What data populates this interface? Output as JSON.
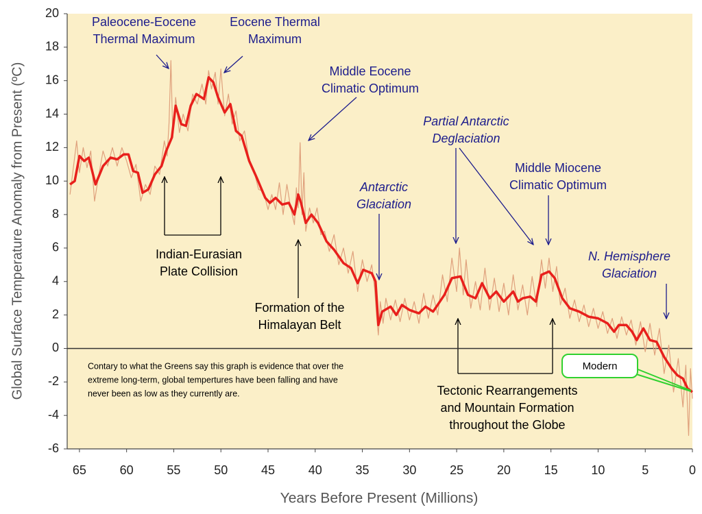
{
  "chart_data": {
    "type": "line",
    "x_label": "Years Before Present (Millions)",
    "y_label": "Global Surface Temperature Anomaly from Present (ºC)",
    "xlim": [
      66.3,
      0
    ],
    "ylim": [
      -6,
      20
    ],
    "xticks": [
      65,
      60,
      55,
      50,
      45,
      40,
      35,
      30,
      25,
      20,
      15,
      10,
      5,
      0
    ],
    "yticks": [
      -6,
      -4,
      -2,
      0,
      2,
      4,
      6,
      8,
      10,
      12,
      14,
      16,
      18,
      20
    ],
    "zero_line": true,
    "series": [
      {
        "color": "#dfa07c",
        "width": 1.2,
        "x": [
          66,
          65.6,
          65.3,
          65,
          64.6,
          64.2,
          63.8,
          63.4,
          63,
          62.5,
          62,
          61.5,
          61,
          60.5,
          60,
          59.5,
          59,
          58.5,
          58,
          57.5,
          57,
          56.5,
          56,
          55.7,
          55.5,
          55.3,
          55.1,
          54.8,
          54.4,
          54,
          53.5,
          53,
          52.5,
          52,
          51.6,
          51.3,
          51,
          50.6,
          50.3,
          50,
          49.6,
          49.2,
          48.8,
          48.4,
          48,
          47.5,
          47,
          46.5,
          46,
          45.5,
          45,
          44.6,
          44.2,
          43.8,
          43.4,
          43,
          42.6,
          42.2,
          42,
          41.8,
          41.6,
          41.4,
          41.2,
          41,
          40.6,
          40.2,
          39.8,
          39.4,
          39,
          38.5,
          38,
          37.5,
          37,
          36.5,
          36,
          35.5,
          35,
          34.5,
          34,
          33.7,
          33.5,
          33.3,
          33.1,
          32.8,
          32.5,
          32,
          31.5,
          31,
          30.5,
          30,
          29.5,
          29,
          28.5,
          28,
          27.5,
          27,
          26.5,
          26,
          25.5,
          25,
          24.7,
          24.3,
          24,
          23.5,
          23,
          22.5,
          22,
          21.5,
          21,
          20.5,
          20,
          19.5,
          19,
          18.5,
          18,
          17.5,
          17,
          16.5,
          16,
          15.6,
          15.2,
          14.8,
          14.4,
          14,
          13.5,
          13,
          12.5,
          12,
          11.5,
          11,
          10.5,
          10,
          9.5,
          9,
          8.5,
          8,
          7.5,
          7,
          6.5,
          6,
          5.5,
          5,
          4.5,
          4,
          3.5,
          3,
          2.5,
          2,
          1.5,
          1,
          0.7,
          0.4,
          0.2,
          0
        ],
        "values": [
          9.2,
          11.0,
          12.4,
          10.5,
          12.0,
          10.8,
          11.8,
          8.8,
          10.2,
          11.8,
          10.9,
          12.0,
          10.9,
          12.0,
          11.2,
          10.2,
          11.0,
          8.8,
          9.8,
          9.2,
          10.9,
          10.4,
          12.4,
          11.5,
          13.5,
          17.2,
          12.6,
          15.0,
          12.9,
          14.0,
          13.0,
          15.2,
          14.6,
          15.8,
          14.6,
          16.6,
          15.5,
          16.5,
          14.6,
          16.7,
          13.9,
          15.2,
          13.4,
          14.2,
          12.4,
          13.0,
          11.2,
          10.6,
          9.5,
          9.4,
          8.3,
          9.2,
          8.3,
          9.9,
          8.0,
          9.8,
          8.4,
          7.4,
          9.6,
          8.4,
          12.3,
          8.0,
          10.5,
          7.0,
          8.4,
          7.5,
          8.4,
          6.8,
          7.0,
          5.8,
          6.8,
          5.0,
          6.0,
          4.5,
          5.8,
          3.4,
          5.3,
          4.0,
          5.0,
          3.6,
          2.0,
          0.8,
          2.8,
          1.5,
          3.0,
          1.7,
          2.9,
          1.6,
          3.0,
          1.7,
          2.8,
          1.5,
          3.3,
          1.8,
          3.2,
          2.0,
          4.4,
          2.8,
          5.4,
          3.4,
          6.0,
          3.2,
          5.3,
          2.4,
          4.0,
          2.3,
          4.8,
          2.3,
          4.2,
          2.2,
          3.9,
          2.0,
          4.4,
          2.3,
          3.8,
          2.0,
          4.3,
          2.5,
          5.3,
          3.6,
          5.4,
          3.4,
          4.9,
          2.6,
          3.6,
          1.8,
          2.9,
          1.6,
          2.6,
          1.3,
          2.4,
          1.2,
          2.2,
          0.9,
          1.8,
          0.6,
          1.9,
          0.8,
          1.7,
          0.2,
          1.6,
          -0.2,
          1.5,
          -0.4,
          1.2,
          -1.5,
          0.2,
          -2.6,
          -0.6,
          -3.5,
          -1.0,
          -5.2,
          -1.2,
          -3.0
        ]
      },
      {
        "color": "#e8201c",
        "width": 3.5,
        "x": [
          66,
          65.5,
          65,
          64.5,
          64,
          63.3,
          62.5,
          61.7,
          61,
          60.3,
          59.8,
          59.3,
          58.8,
          58.3,
          57.7,
          57,
          56.3,
          55.8,
          55.2,
          54.8,
          54.2,
          53.7,
          53.2,
          52.6,
          51.8,
          51.3,
          50.8,
          50.3,
          49.6,
          49,
          48.4,
          47.8,
          47,
          46.2,
          45.3,
          44.8,
          44.2,
          43.5,
          42.8,
          42.2,
          41.8,
          41.5,
          41,
          40.4,
          39.7,
          38.8,
          38,
          37,
          36.2,
          35.5,
          34.9,
          34,
          33.6,
          33.3,
          32.9,
          32,
          31.4,
          30.8,
          30,
          29,
          28.3,
          27.5,
          26.3,
          25.5,
          24.6,
          23.8,
          23,
          22.3,
          21.5,
          20.8,
          20,
          19,
          18.5,
          18,
          17.2,
          16.6,
          16,
          15.2,
          14.6,
          13.8,
          13,
          12,
          11,
          10,
          9,
          8.3,
          7.8,
          7,
          6.4,
          5.9,
          5.2,
          4.5,
          3.8,
          3,
          2.2,
          1.6,
          1,
          0.5,
          0
        ],
        "values": [
          9.8,
          10.0,
          11.5,
          11.2,
          11.4,
          9.8,
          10.9,
          11.4,
          11.3,
          11.6,
          11.6,
          10.6,
          10.5,
          9.3,
          9.5,
          10.4,
          10.9,
          11.8,
          12.6,
          14.5,
          13.4,
          13.3,
          14.5,
          15.2,
          14.9,
          16.2,
          15.9,
          15.0,
          14.1,
          14.6,
          13.0,
          12.7,
          11.2,
          10.2,
          9.0,
          8.7,
          9.0,
          8.6,
          8.7,
          8.0,
          9.2,
          8.7,
          7.5,
          8.0,
          7.5,
          6.4,
          5.9,
          5.1,
          4.8,
          3.9,
          4.7,
          4.5,
          4.0,
          1.4,
          2.2,
          2.5,
          2.0,
          2.6,
          2.3,
          2.1,
          2.5,
          2.2,
          3.2,
          4.2,
          4.3,
          3.2,
          3.0,
          3.9,
          3.0,
          3.4,
          2.8,
          3.4,
          2.8,
          3.0,
          3.1,
          2.8,
          4.4,
          4.6,
          4.2,
          3.0,
          2.4,
          2.2,
          1.9,
          1.8,
          1.5,
          1.0,
          1.4,
          1.4,
          1.0,
          0.5,
          1.2,
          0.5,
          0.4,
          -0.5,
          -1.2,
          -1.6,
          -1.8,
          -2.4,
          -2.6
        ]
      }
    ],
    "annotations": [
      {
        "lines": [
          "Paleocene-Eocene",
          "Thermal Maximum"
        ],
        "color": "#1c1c8c",
        "italic": false
      },
      {
        "lines": [
          "Eocene Thermal",
          "Maximum"
        ],
        "color": "#1c1c8c",
        "italic": false
      },
      {
        "lines": [
          "Middle Eocene",
          "Climatic Optimum"
        ],
        "color": "#1c1c8c",
        "italic": false
      },
      {
        "lines": [
          "Partial Antarctic",
          "Deglaciation"
        ],
        "color": "#1c1c8c",
        "italic": true
      },
      {
        "lines": [
          "Middle Miocene",
          "Climatic Optimum"
        ],
        "color": "#1c1c8c",
        "italic": false
      },
      {
        "lines": [
          "Antarctic",
          "Glaciation"
        ],
        "color": "#1c1c8c",
        "italic": true
      },
      {
        "lines": [
          "N. Hemisphere",
          "Glaciation"
        ],
        "color": "#1c1c8c",
        "italic": true
      },
      {
        "lines": [
          "Indian-Eurasian",
          "Plate Collision"
        ],
        "color": "#000000",
        "italic": false
      },
      {
        "lines": [
          "Formation of the",
          "Himalayan Belt"
        ],
        "color": "#000000",
        "italic": false
      },
      {
        "lines": [
          "Tectonic Rearrangements",
          "and Mountain Formation",
          "throughout the Globe"
        ],
        "color": "#000000",
        "italic": false
      }
    ],
    "note": [
      "Contary to what the Greens say this graph is evidence that over the",
      "extreme long-term, global tempertures have been falling and have",
      "never been as low as they currently are."
    ],
    "callout": "Modern"
  }
}
